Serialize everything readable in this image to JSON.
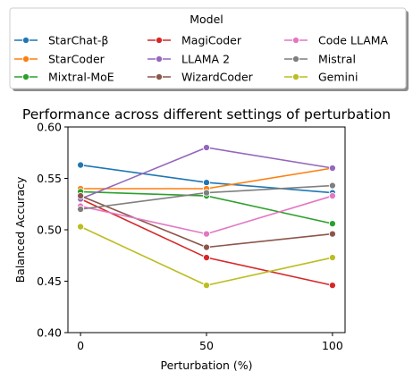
{
  "chart_data": {
    "type": "line",
    "title": "Performance across different settings of perturbation",
    "xlabel": "Perturbation (%)",
    "ylabel": "Balanced Accuracy",
    "x": [
      0,
      50,
      100
    ],
    "xticks": [
      "0",
      "50",
      "100"
    ],
    "ylim": [
      0.4,
      0.6
    ],
    "yticks": [
      "0.40",
      "0.45",
      "0.50",
      "0.55",
      "0.60"
    ],
    "grid": false,
    "legend": {
      "title": "Model",
      "placement": "top-center",
      "columns": 3
    },
    "series": [
      {
        "name": "StarChat-β",
        "color": "#1f77b4",
        "values": [
          0.563,
          0.546,
          0.536
        ]
      },
      {
        "name": "StarCoder",
        "color": "#ff7f0e",
        "values": [
          0.54,
          0.54,
          0.56
        ]
      },
      {
        "name": "Mixtral-MoE",
        "color": "#2ca02c",
        "values": [
          0.537,
          0.533,
          0.506
        ]
      },
      {
        "name": "MagiCoder",
        "color": "#d62728",
        "values": [
          0.53,
          0.473,
          0.446
        ]
      },
      {
        "name": "LLAMA 2",
        "color": "#9467bd",
        "values": [
          0.53,
          0.58,
          0.56
        ]
      },
      {
        "name": "WizardCoder",
        "color": "#8c564b",
        "values": [
          0.533,
          0.483,
          0.496
        ]
      },
      {
        "name": "Code LLAMA",
        "color": "#e377c2",
        "values": [
          0.523,
          0.496,
          0.533
        ]
      },
      {
        "name": "Mistral",
        "color": "#7f7f7f",
        "values": [
          0.52,
          0.536,
          0.543
        ]
      },
      {
        "name": "Gemini",
        "color": "#bcbd22",
        "values": [
          0.503,
          0.446,
          0.473
        ]
      }
    ]
  }
}
